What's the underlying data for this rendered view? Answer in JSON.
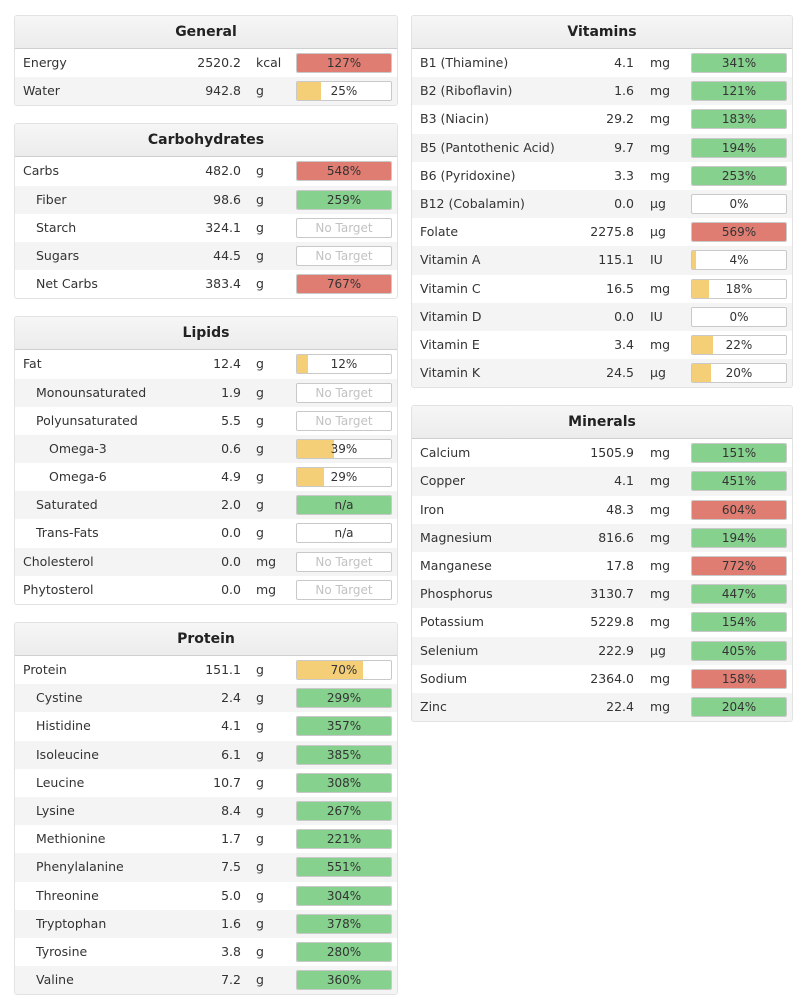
{
  "colors": {
    "red": "#e07d73",
    "green": "#86d18e",
    "yellow": "#f4cf78"
  },
  "columns": [
    {
      "id": "col-left",
      "panels": [
        {
          "title": "General",
          "rows": [
            {
              "name": "Energy",
              "value": "2520.2",
              "unit": "kcal",
              "bar": "127%",
              "fill": 100,
              "color": "red"
            },
            {
              "name": "Water",
              "value": "942.8",
              "unit": "g",
              "bar": "25%",
              "fill": 25,
              "color": "yellow"
            }
          ]
        },
        {
          "title": "Carbohydrates",
          "rows": [
            {
              "name": "Carbs",
              "value": "482.0",
              "unit": "g",
              "bar": "548%",
              "fill": 100,
              "color": "red"
            },
            {
              "name": "Fiber",
              "value": "98.6",
              "unit": "g",
              "bar": "259%",
              "fill": 100,
              "color": "green",
              "indent": 1
            },
            {
              "name": "Starch",
              "value": "324.1",
              "unit": "g",
              "bar": "No Target",
              "fill": 0,
              "color": "none",
              "indent": 1
            },
            {
              "name": "Sugars",
              "value": "44.5",
              "unit": "g",
              "bar": "No Target",
              "fill": 0,
              "color": "none",
              "indent": 1
            },
            {
              "name": "Net Carbs",
              "value": "383.4",
              "unit": "g",
              "bar": "767%",
              "fill": 100,
              "color": "red",
              "indent": 1
            }
          ]
        },
        {
          "title": "Lipids",
          "rows": [
            {
              "name": "Fat",
              "value": "12.4",
              "unit": "g",
              "bar": "12%",
              "fill": 12,
              "color": "yellow"
            },
            {
              "name": "Monounsaturated",
              "value": "1.9",
              "unit": "g",
              "bar": "No Target",
              "fill": 0,
              "color": "none",
              "indent": 1
            },
            {
              "name": "Polyunsaturated",
              "value": "5.5",
              "unit": "g",
              "bar": "No Target",
              "fill": 0,
              "color": "none",
              "indent": 1
            },
            {
              "name": "Omega-3",
              "value": "0.6",
              "unit": "g",
              "bar": "39%",
              "fill": 39,
              "color": "yellow",
              "indent": 2
            },
            {
              "name": "Omega-6",
              "value": "4.9",
              "unit": "g",
              "bar": "29%",
              "fill": 29,
              "color": "yellow",
              "indent": 2
            },
            {
              "name": "Saturated",
              "value": "2.0",
              "unit": "g",
              "bar": "n/a",
              "fill": 100,
              "color": "green",
              "indent": 1
            },
            {
              "name": "Trans-Fats",
              "value": "0.0",
              "unit": "g",
              "bar": "n/a",
              "fill": 0,
              "color": "none",
              "indent": 1
            },
            {
              "name": "Cholesterol",
              "value": "0.0",
              "unit": "mg",
              "bar": "No Target",
              "fill": 0,
              "color": "none"
            },
            {
              "name": "Phytosterol",
              "value": "0.0",
              "unit": "mg",
              "bar": "No Target",
              "fill": 0,
              "color": "none"
            }
          ]
        },
        {
          "title": "Protein",
          "rows": [
            {
              "name": "Protein",
              "value": "151.1",
              "unit": "g",
              "bar": "70%",
              "fill": 70,
              "color": "yellow"
            },
            {
              "name": "Cystine",
              "value": "2.4",
              "unit": "g",
              "bar": "299%",
              "fill": 100,
              "color": "green",
              "indent": 1
            },
            {
              "name": "Histidine",
              "value": "4.1",
              "unit": "g",
              "bar": "357%",
              "fill": 100,
              "color": "green",
              "indent": 1
            },
            {
              "name": "Isoleucine",
              "value": "6.1",
              "unit": "g",
              "bar": "385%",
              "fill": 100,
              "color": "green",
              "indent": 1
            },
            {
              "name": "Leucine",
              "value": "10.7",
              "unit": "g",
              "bar": "308%",
              "fill": 100,
              "color": "green",
              "indent": 1
            },
            {
              "name": "Lysine",
              "value": "8.4",
              "unit": "g",
              "bar": "267%",
              "fill": 100,
              "color": "green",
              "indent": 1
            },
            {
              "name": "Methionine",
              "value": "1.7",
              "unit": "g",
              "bar": "221%",
              "fill": 100,
              "color": "green",
              "indent": 1
            },
            {
              "name": "Phenylalanine",
              "value": "7.5",
              "unit": "g",
              "bar": "551%",
              "fill": 100,
              "color": "green",
              "indent": 1
            },
            {
              "name": "Threonine",
              "value": "5.0",
              "unit": "g",
              "bar": "304%",
              "fill": 100,
              "color": "green",
              "indent": 1
            },
            {
              "name": "Tryptophan",
              "value": "1.6",
              "unit": "g",
              "bar": "378%",
              "fill": 100,
              "color": "green",
              "indent": 1
            },
            {
              "name": "Tyrosine",
              "value": "3.8",
              "unit": "g",
              "bar": "280%",
              "fill": 100,
              "color": "green",
              "indent": 1
            },
            {
              "name": "Valine",
              "value": "7.2",
              "unit": "g",
              "bar": "360%",
              "fill": 100,
              "color": "green",
              "indent": 1
            }
          ]
        }
      ]
    },
    {
      "id": "col-right",
      "panels": [
        {
          "title": "Vitamins",
          "rows": [
            {
              "name": "B1 (Thiamine)",
              "value": "4.1",
              "unit": "mg",
              "bar": "341%",
              "fill": 100,
              "color": "green"
            },
            {
              "name": "B2 (Riboflavin)",
              "value": "1.6",
              "unit": "mg",
              "bar": "121%",
              "fill": 100,
              "color": "green"
            },
            {
              "name": "B3 (Niacin)",
              "value": "29.2",
              "unit": "mg",
              "bar": "183%",
              "fill": 100,
              "color": "green"
            },
            {
              "name": "B5 (Pantothenic Acid)",
              "value": "9.7",
              "unit": "mg",
              "bar": "194%",
              "fill": 100,
              "color": "green"
            },
            {
              "name": "B6 (Pyridoxine)",
              "value": "3.3",
              "unit": "mg",
              "bar": "253%",
              "fill": 100,
              "color": "green"
            },
            {
              "name": "B12 (Cobalamin)",
              "value": "0.0",
              "unit": "µg",
              "bar": "0%",
              "fill": 0,
              "color": "none"
            },
            {
              "name": "Folate",
              "value": "2275.8",
              "unit": "µg",
              "bar": "569%",
              "fill": 100,
              "color": "red"
            },
            {
              "name": "Vitamin A",
              "value": "115.1",
              "unit": "IU",
              "bar": "4%",
              "fill": 4,
              "color": "yellow"
            },
            {
              "name": "Vitamin C",
              "value": "16.5",
              "unit": "mg",
              "bar": "18%",
              "fill": 18,
              "color": "yellow"
            },
            {
              "name": "Vitamin D",
              "value": "0.0",
              "unit": "IU",
              "bar": "0%",
              "fill": 0,
              "color": "none"
            },
            {
              "name": "Vitamin E",
              "value": "3.4",
              "unit": "mg",
              "bar": "22%",
              "fill": 22,
              "color": "yellow"
            },
            {
              "name": "Vitamin K",
              "value": "24.5",
              "unit": "µg",
              "bar": "20%",
              "fill": 20,
              "color": "yellow"
            }
          ]
        },
        {
          "title": "Minerals",
          "rows": [
            {
              "name": "Calcium",
              "value": "1505.9",
              "unit": "mg",
              "bar": "151%",
              "fill": 100,
              "color": "green"
            },
            {
              "name": "Copper",
              "value": "4.1",
              "unit": "mg",
              "bar": "451%",
              "fill": 100,
              "color": "green"
            },
            {
              "name": "Iron",
              "value": "48.3",
              "unit": "mg",
              "bar": "604%",
              "fill": 100,
              "color": "red"
            },
            {
              "name": "Magnesium",
              "value": "816.6",
              "unit": "mg",
              "bar": "194%",
              "fill": 100,
              "color": "green"
            },
            {
              "name": "Manganese",
              "value": "17.8",
              "unit": "mg",
              "bar": "772%",
              "fill": 100,
              "color": "red"
            },
            {
              "name": "Phosphorus",
              "value": "3130.7",
              "unit": "mg",
              "bar": "447%",
              "fill": 100,
              "color": "green"
            },
            {
              "name": "Potassium",
              "value": "5229.8",
              "unit": "mg",
              "bar": "154%",
              "fill": 100,
              "color": "green"
            },
            {
              "name": "Selenium",
              "value": "222.9",
              "unit": "µg",
              "bar": "405%",
              "fill": 100,
              "color": "green"
            },
            {
              "name": "Sodium",
              "value": "2364.0",
              "unit": "mg",
              "bar": "158%",
              "fill": 100,
              "color": "red"
            },
            {
              "name": "Zinc",
              "value": "22.4",
              "unit": "mg",
              "bar": "204%",
              "fill": 100,
              "color": "green"
            }
          ]
        }
      ]
    }
  ]
}
